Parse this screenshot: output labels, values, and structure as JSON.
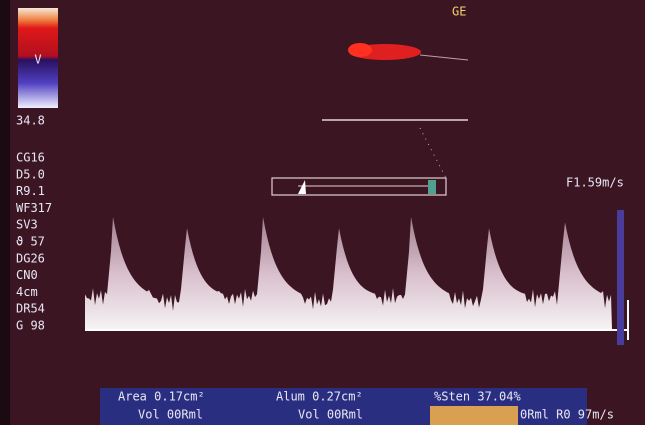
{
  "header": {
    "logo": "GE"
  },
  "color_bar": {
    "label": "V",
    "max": "34.8"
  },
  "parameters": [
    "CG16",
    "D5.0",
    "R9.1",
    "WF317",
    "SV3",
    "ϑ 57",
    "DG26",
    "CN0",
    "4cm",
    "DR54",
    "G 98"
  ],
  "scale_label": "F1.59m/s",
  "measurements": {
    "row1": [
      "Area 0.17cm²",
      "Alum 0.27cm²",
      "%Sten 37.04%"
    ],
    "row2": [
      "Vol  00Rml",
      "Vol  00Rml",
      "0Rml R0 97m/s"
    ]
  }
}
